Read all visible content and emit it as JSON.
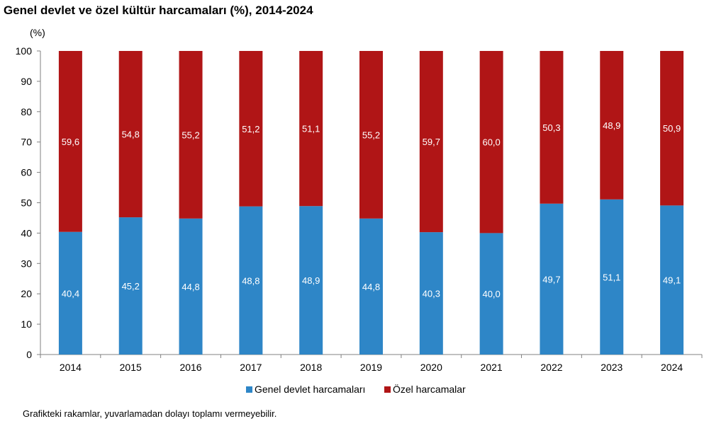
{
  "title": "Genel devlet ve özel kültür harcamaları (%), 2014-2024",
  "footnote": "Grafikteki rakamlar, yuvarlamadan dolayı toplamı vermeyebilir.",
  "colors": {
    "genel": "#2e86c7",
    "ozel": "#b01516",
    "axis": "#808080",
    "text": "#000000",
    "label": "#ffffff"
  },
  "chart_data": {
    "type": "bar",
    "stacked": true,
    "title": "Genel devlet ve özel kültür harcamaları (%), 2014-2024",
    "unit_label": "(%)",
    "xlabel": "",
    "ylabel": "",
    "ylim": [
      0,
      100
    ],
    "yticks": [
      0,
      10,
      20,
      30,
      40,
      50,
      60,
      70,
      80,
      90,
      100
    ],
    "grid": false,
    "legend_position": "bottom",
    "categories": [
      "2014",
      "2015",
      "2016",
      "2017",
      "2018",
      "2019",
      "2020",
      "2021",
      "2022",
      "2023",
      "2024"
    ],
    "series": [
      {
        "name": "Genel devlet harcamaları",
        "color": "#2e86c7",
        "values": [
          40.4,
          45.2,
          44.8,
          48.8,
          48.9,
          44.8,
          40.3,
          40.0,
          49.7,
          51.1,
          49.1
        ],
        "labels": [
          "40,4",
          "45,2",
          "44,8",
          "48,8",
          "48,9",
          "44,8",
          "40,3",
          "40,0",
          "49,7",
          "51,1",
          "49,1"
        ]
      },
      {
        "name": "Özel harcamalar",
        "color": "#b01516",
        "values": [
          59.6,
          54.8,
          55.2,
          51.2,
          51.1,
          55.2,
          59.7,
          60.0,
          50.3,
          48.9,
          50.9
        ],
        "labels": [
          "59,6",
          "54,8",
          "55,2",
          "51,2",
          "51,1",
          "55,2",
          "59,7",
          "60,0",
          "50,3",
          "48,9",
          "50,9"
        ]
      }
    ]
  }
}
